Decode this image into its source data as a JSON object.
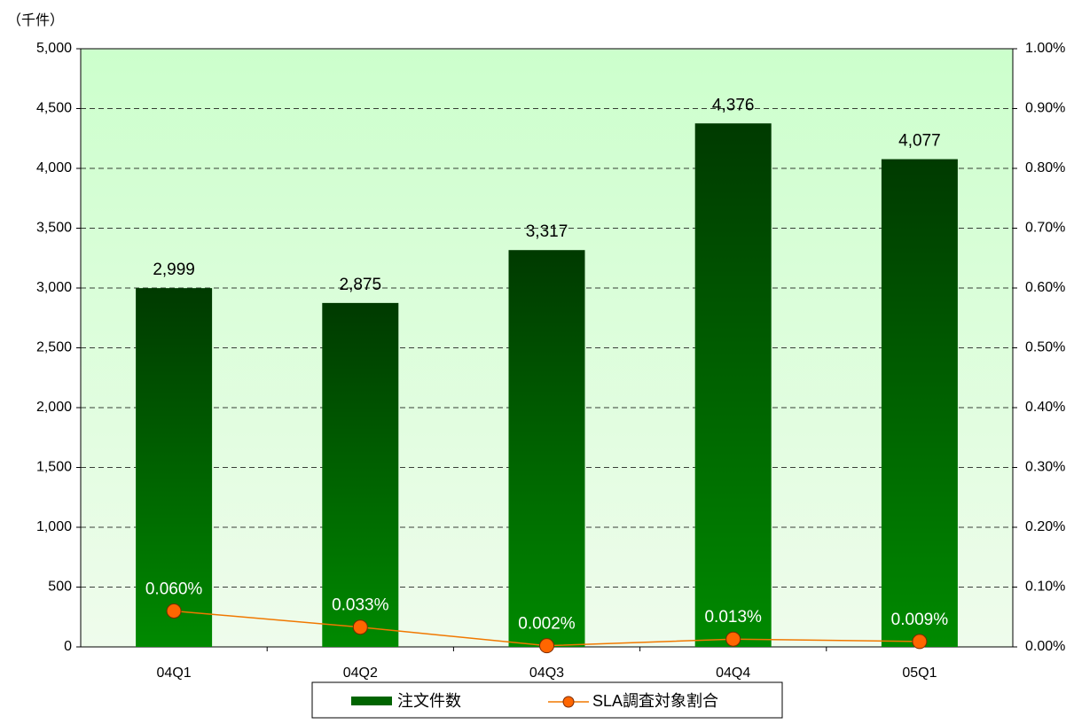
{
  "chart_data": {
    "type": "bar",
    "y_axis_label": "（千件）",
    "categories": [
      "04Q1",
      "04Q2",
      "04Q3",
      "04Q4",
      "05Q1"
    ],
    "series": [
      {
        "name": "注文件数",
        "type": "bar",
        "color": "#006400",
        "values": [
          2999,
          2875,
          3317,
          4376,
          4077
        ],
        "value_labels": [
          "2,999",
          "2,875",
          "3,317",
          "4,376",
          "4,077"
        ]
      },
      {
        "name": "SLA調査対象割合",
        "type": "line",
        "axis": "y2",
        "color": "#f07800",
        "values": [
          0.06,
          0.033,
          0.002,
          0.013,
          0.009
        ],
        "value_labels": [
          "0.060%",
          "0.033%",
          "0.002%",
          "0.013%",
          "0.009%"
        ]
      }
    ],
    "ylim": [
      0,
      5000
    ],
    "yticks": [
      0,
      500,
      {
        "value": 1000,
        "label": "1,000"
      },
      {
        "value": 1500,
        "label": "1,500"
      },
      {
        "value": 2000,
        "label": "2,000"
      },
      {
        "value": 2500,
        "label": "2,500"
      },
      {
        "value": 3000,
        "label": "3,000"
      },
      {
        "value": 3500,
        "label": "3,500"
      },
      {
        "value": 4000,
        "label": "4,000"
      },
      {
        "value": 4500,
        "label": "4,500"
      },
      {
        "value": 5000,
        "label": "5,000"
      }
    ],
    "y2lim": [
      0,
      1
    ],
    "y2ticks": [
      {
        "value": 0,
        "label": "0.00%"
      },
      {
        "value": 0.1,
        "label": "0.10%"
      },
      {
        "value": 0.2,
        "label": "0.20%"
      },
      {
        "value": 0.3,
        "label": "0.30%"
      },
      {
        "value": 0.4,
        "label": "0.40%"
      },
      {
        "value": 0.5,
        "label": "0.50%"
      },
      {
        "value": 0.6,
        "label": "0.60%"
      },
      {
        "value": 0.7,
        "label": "0.70%"
      },
      {
        "value": 0.8,
        "label": "0.80%"
      },
      {
        "value": 0.9,
        "label": "0.90%"
      },
      {
        "value": 1,
        "label": "1.00%"
      }
    ],
    "grid": true,
    "legend": "bottom"
  }
}
